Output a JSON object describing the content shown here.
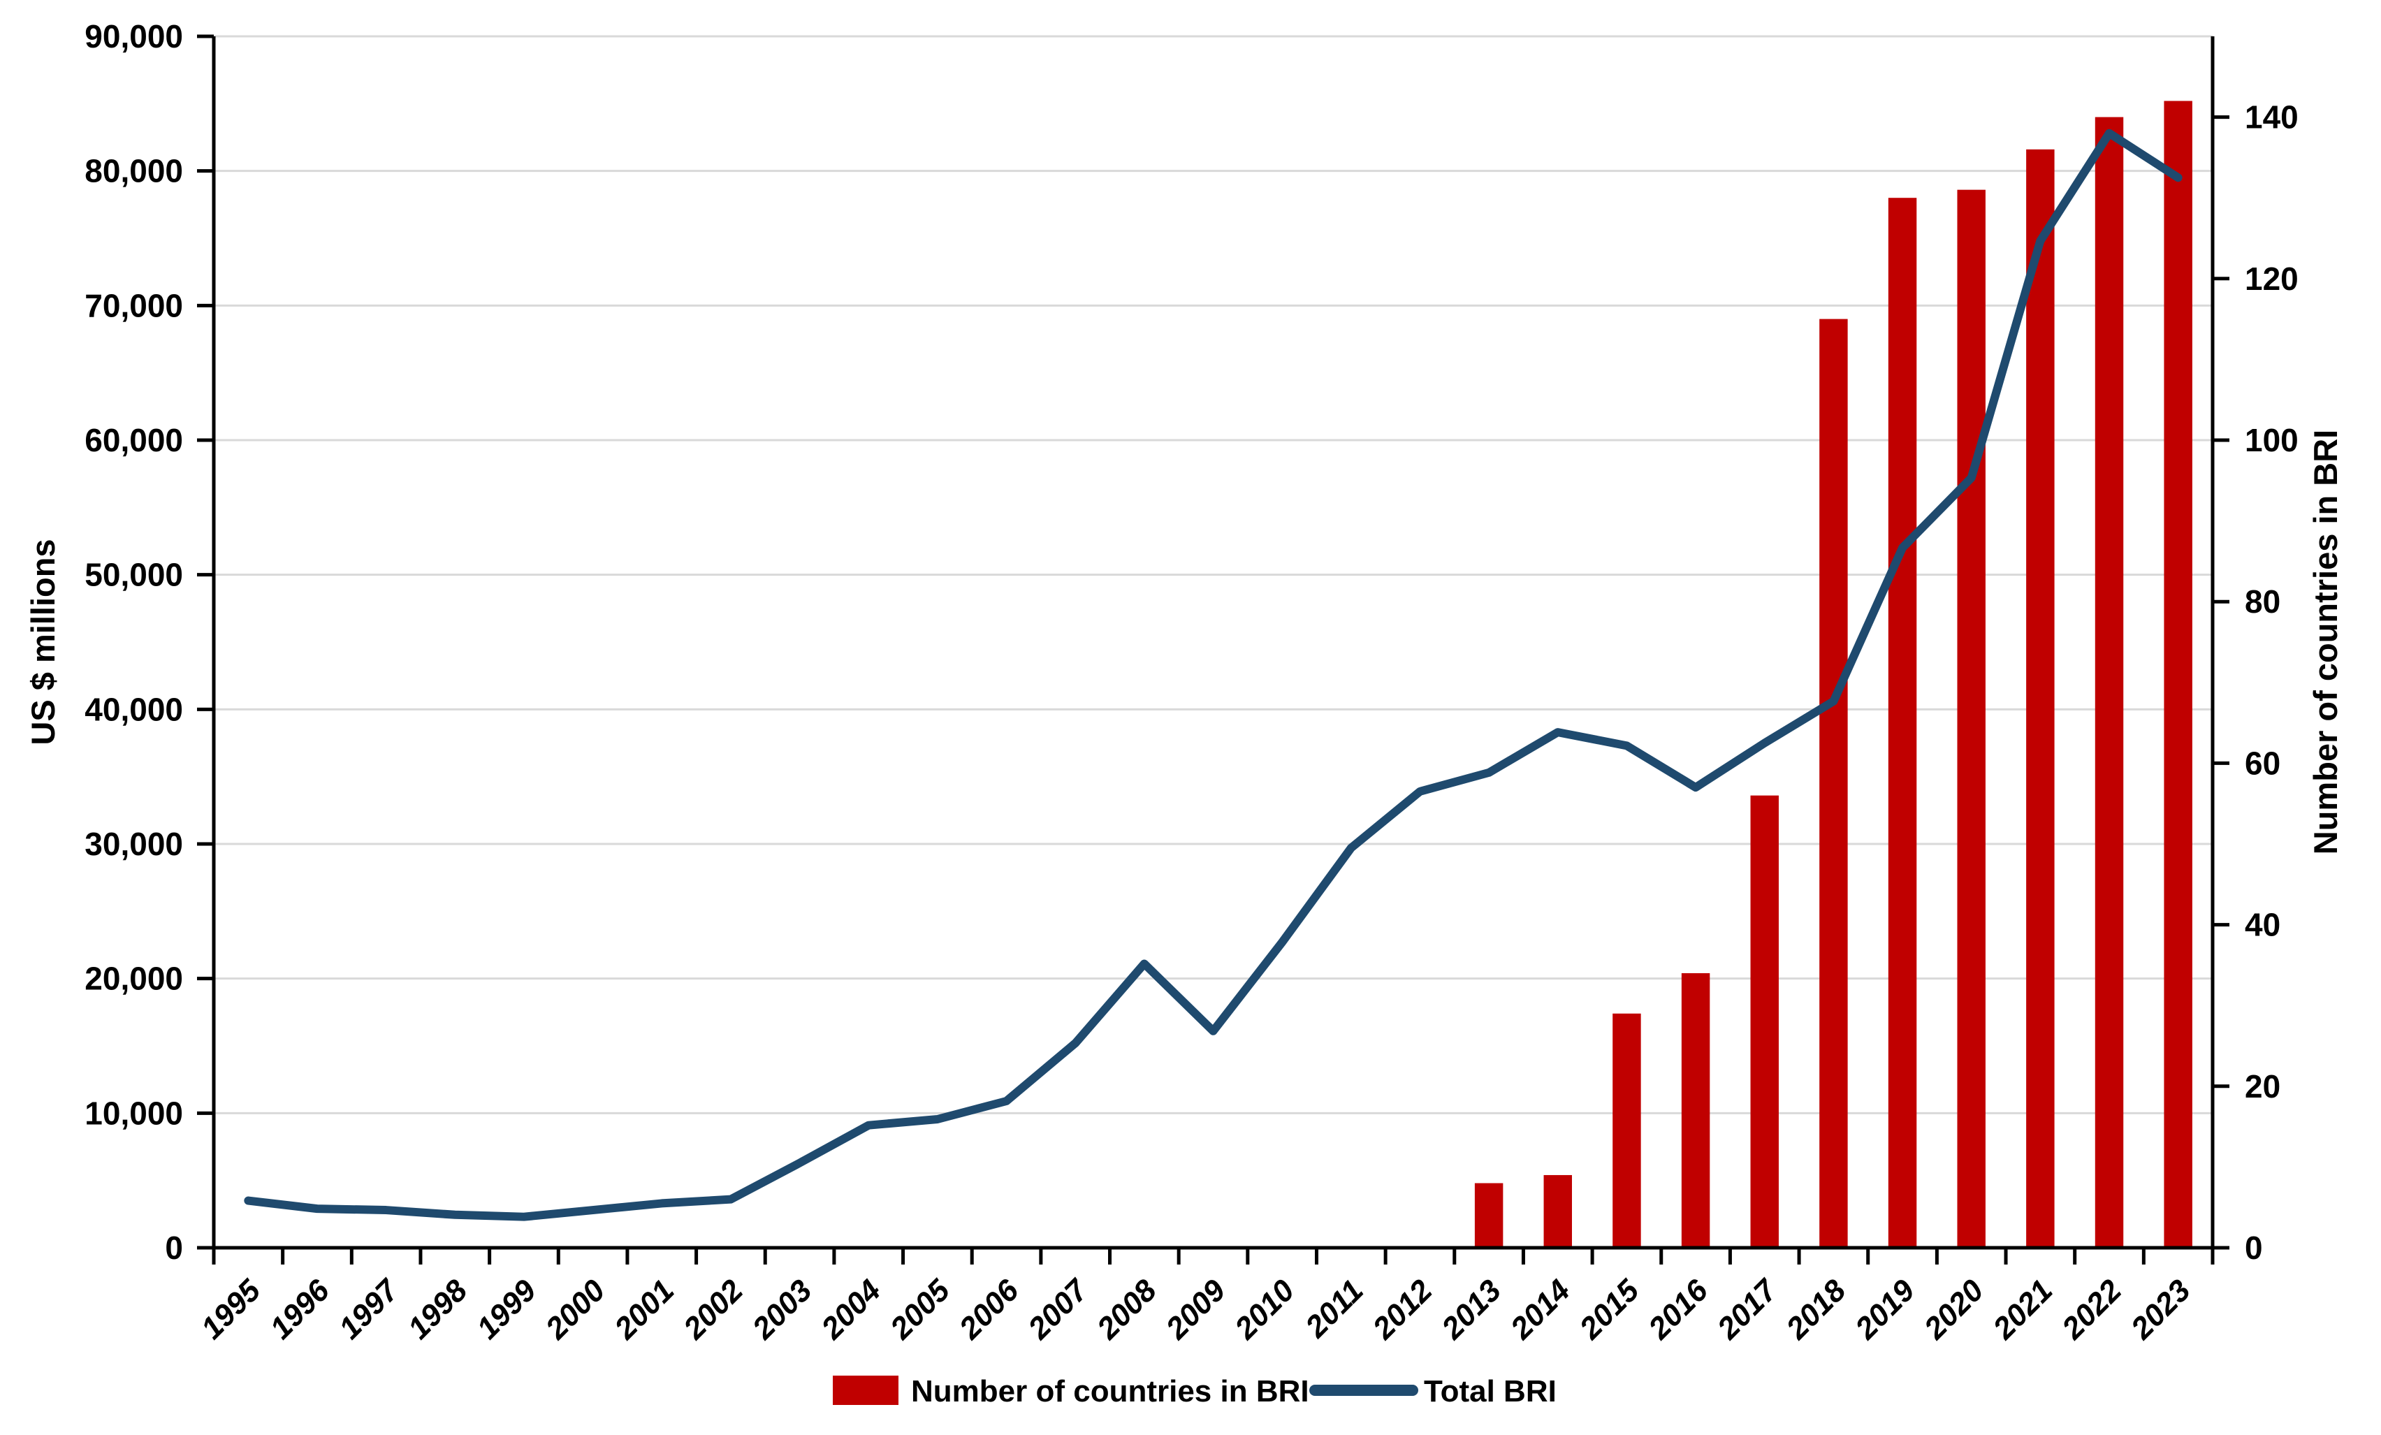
{
  "chart_data": {
    "type": "bar",
    "subtype": "combo-bar-line-dual-axis",
    "title": "",
    "categories": [
      "1995",
      "1996",
      "1997",
      "1998",
      "1999",
      "2000",
      "2001",
      "2002",
      "2003",
      "2004",
      "2005",
      "2006",
      "2007",
      "2008",
      "2009",
      "2010",
      "2011",
      "2012",
      "2013",
      "2014",
      "2015",
      "2016",
      "2017",
      "2018",
      "2019",
      "2020",
      "2021",
      "2022",
      "2023"
    ],
    "series": [
      {
        "name": "Number of countries in BRI",
        "type": "bar",
        "axis": "right",
        "color": "#C00000",
        "values": [
          null,
          null,
          null,
          null,
          null,
          null,
          null,
          null,
          null,
          null,
          null,
          null,
          null,
          null,
          null,
          null,
          null,
          null,
          8,
          9,
          29,
          34,
          56,
          115,
          130,
          131,
          136,
          140,
          142
        ]
      },
      {
        "name": "Total BRI",
        "type": "line",
        "axis": "left",
        "color": "#1F4A6E",
        "values": [
          3500,
          2900,
          2800,
          2450,
          2300,
          2800,
          3300,
          3600,
          6300,
          9100,
          9550,
          10900,
          15200,
          21100,
          16100,
          22700,
          29700,
          33900,
          35300,
          38300,
          37300,
          34200,
          37500,
          40600,
          52000,
          57200,
          74800,
          82800,
          79500
        ]
      }
    ],
    "left_axis": {
      "label": "US $ millions",
      "min": 0,
      "max": 90000,
      "tick_step": 10000,
      "tick_labels": [
        "0",
        "10,000",
        "20,000",
        "30,000",
        "40,000",
        "50,000",
        "60,000",
        "70,000",
        "80,000",
        "90,000"
      ]
    },
    "right_axis": {
      "label": "Number of countries in BRI",
      "min": 0,
      "max": 150,
      "tick_step": 20,
      "tick_labels": [
        "0",
        "20",
        "40",
        "60",
        "80",
        "100",
        "120",
        "140"
      ]
    },
    "x_axis": {
      "label": "",
      "tick_label_rotation": -45
    },
    "grid": {
      "horizontal": true,
      "color": "#D9D9D9"
    },
    "legend": {
      "position": "bottom-center",
      "items": [
        {
          "label": "Number of countries in BRI",
          "swatch": "bar",
          "color": "#C00000"
        },
        {
          "label": "Total BRI",
          "swatch": "line",
          "color": "#1F4A6E"
        }
      ]
    },
    "colors": {
      "bar": "#C00000",
      "line": "#1F4A6E",
      "axis": "#000000",
      "gridline": "#D9D9D9",
      "background": "#FFFFFF"
    }
  }
}
